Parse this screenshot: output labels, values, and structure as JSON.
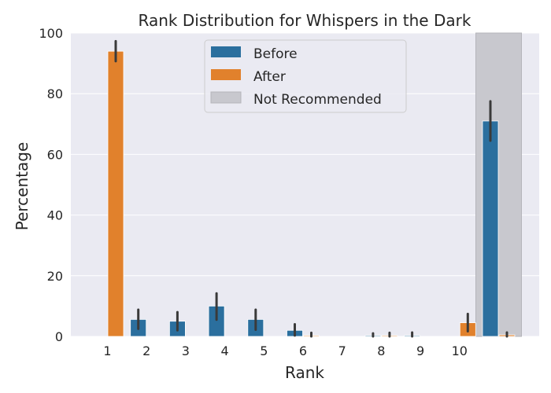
{
  "chart_data": {
    "type": "bar",
    "title": "Rank Distribution for Whispers in the Dark",
    "xlabel": "Rank",
    "ylabel": "Percentage",
    "ylim": [
      0,
      100
    ],
    "yticks": [
      0,
      20,
      40,
      60,
      80,
      100
    ],
    "categories": [
      "1",
      "2",
      "3",
      "4",
      "5",
      "6",
      "7",
      "8",
      "9",
      "10",
      ""
    ],
    "series": [
      {
        "name": "Before",
        "color": "#2b6f9e",
        "values": [
          0,
          5.6,
          5.0,
          10.0,
          5.6,
          2.0,
          0,
          0.3,
          0.3,
          0,
          71.0
        ],
        "error": [
          [
            0,
            0
          ],
          [
            2.5,
            8.8
          ],
          [
            2.0,
            8.0
          ],
          [
            5.5,
            14.2
          ],
          [
            2.2,
            8.8
          ],
          [
            0.3,
            4.0
          ],
          [
            0,
            0
          ],
          [
            0,
            1.0
          ],
          [
            0,
            1.3
          ],
          [
            0,
            0
          ],
          [
            64.5,
            77.5
          ]
        ]
      },
      {
        "name": "After",
        "color": "#e1812c",
        "values": [
          94.0,
          0,
          0,
          0,
          0,
          0.3,
          0,
          0.3,
          0,
          4.5,
          0.5
        ],
        "error": [
          [
            90.7,
            97.3
          ],
          [
            0,
            0
          ],
          [
            0,
            0
          ],
          [
            0,
            0
          ],
          [
            0,
            0
          ],
          [
            0,
            1.2
          ],
          [
            0,
            0
          ],
          [
            0,
            1.2
          ],
          [
            0,
            0
          ],
          [
            1.7,
            7.4
          ],
          [
            0,
            1.3
          ]
        ]
      }
    ],
    "shaded_region": {
      "name": "Not Recommended",
      "category_index": 10,
      "color": "#c8c8ce"
    },
    "legend": {
      "placement": "top-center",
      "entries": [
        "Before",
        "After",
        "Not Recommended"
      ]
    },
    "grid": true,
    "background": "#eaeaf2",
    "grid_color": "#ffffff",
    "error_color": "#3a3a3a"
  }
}
